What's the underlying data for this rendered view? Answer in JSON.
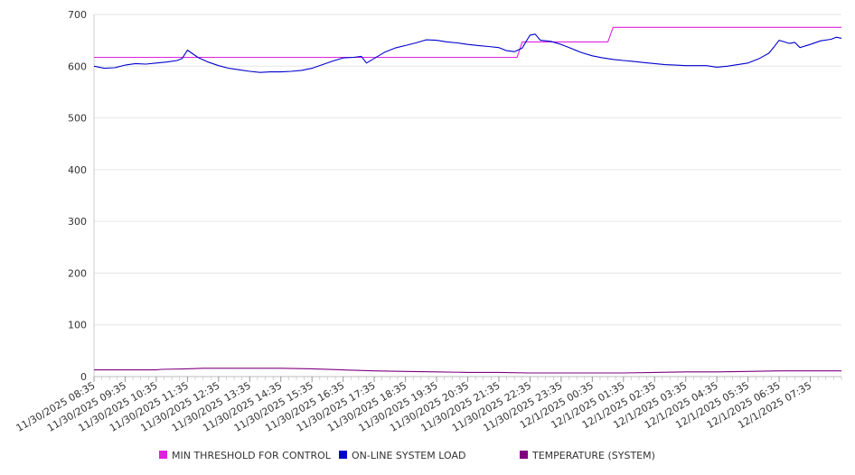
{
  "chart_data": {
    "type": "line",
    "title": "",
    "xlabel": "",
    "ylabel": "",
    "ylim": [
      0,
      700
    ],
    "y_ticks": [
      0,
      100,
      200,
      300,
      400,
      500,
      600,
      700
    ],
    "x_range": [
      "11/30/2025 08:35",
      "12/1/2025 08:35"
    ],
    "x_tick_labels": [
      "11/30/2025 08:35",
      "11/30/2025 09:35",
      "11/30/2025 10:35",
      "11/30/2025 11:35",
      "11/30/2025 12:35",
      "11/30/2025 13:35",
      "11/30/2025 14:35",
      "11/30/2025 15:35",
      "11/30/2025 16:35",
      "11/30/2025 17:35",
      "11/30/2025 18:35",
      "11/30/2025 19:35",
      "11/30/2025 20:35",
      "11/30/2025 21:35",
      "11/30/2025 22:35",
      "11/30/2025 23:35",
      "12/1/2025 00:35",
      "12/1/2025 01:35",
      "12/1/2025 02:35",
      "12/1/2025 03:35",
      "12/1/2025 04:35",
      "12/1/2025 05:35",
      "12/1/2025 06:35",
      "12/1/2025 07:35"
    ],
    "grid": "horizontal",
    "legend_position": "bottom",
    "series": [
      {
        "name": "MIN THRESHOLD FOR CONTROL",
        "color": "#e020e0",
        "points": [
          [
            "11/30/2025 08:35",
            617
          ],
          [
            "11/30/2025 22:10",
            617
          ],
          [
            "11/30/2025 22:20",
            647
          ],
          [
            "12/1/2025 01:05",
            647
          ],
          [
            "12/1/2025 01:15",
            675
          ],
          [
            "12/1/2025 08:35",
            675
          ]
        ]
      },
      {
        "name": "ON-LINE SYSTEM LOAD",
        "color": "#0000cc",
        "points": [
          [
            "11/30/2025 08:35",
            600
          ],
          [
            "11/30/2025 08:55",
            596
          ],
          [
            "11/30/2025 09:15",
            597
          ],
          [
            "11/30/2025 09:35",
            602
          ],
          [
            "11/30/2025 09:55",
            605
          ],
          [
            "11/30/2025 10:15",
            604
          ],
          [
            "11/30/2025 10:35",
            606
          ],
          [
            "11/30/2025 10:55",
            608
          ],
          [
            "11/30/2025 11:15",
            611
          ],
          [
            "11/30/2025 11:25",
            615
          ],
          [
            "11/30/2025 11:35",
            631
          ],
          [
            "11/30/2025 11:55",
            617
          ],
          [
            "11/30/2025 12:15",
            608
          ],
          [
            "11/30/2025 12:35",
            601
          ],
          [
            "11/30/2025 12:55",
            596
          ],
          [
            "11/30/2025 13:15",
            593
          ],
          [
            "11/30/2025 13:35",
            590
          ],
          [
            "11/30/2025 13:55",
            588
          ],
          [
            "11/30/2025 14:15",
            589
          ],
          [
            "11/30/2025 14:35",
            589
          ],
          [
            "11/30/2025 14:55",
            590
          ],
          [
            "11/30/2025 15:15",
            592
          ],
          [
            "11/30/2025 15:35",
            596
          ],
          [
            "11/30/2025 15:55",
            603
          ],
          [
            "11/30/2025 16:15",
            610
          ],
          [
            "11/30/2025 16:35",
            616
          ],
          [
            "11/30/2025 16:55",
            617
          ],
          [
            "11/30/2025 17:10",
            619
          ],
          [
            "11/30/2025 17:20",
            606
          ],
          [
            "11/30/2025 17:35",
            615
          ],
          [
            "11/30/2025 17:55",
            627
          ],
          [
            "11/30/2025 18:15",
            635
          ],
          [
            "11/30/2025 18:35",
            640
          ],
          [
            "11/30/2025 18:55",
            645
          ],
          [
            "11/30/2025 19:15",
            651
          ],
          [
            "11/30/2025 19:35",
            650
          ],
          [
            "11/30/2025 19:55",
            647
          ],
          [
            "11/30/2025 20:15",
            645
          ],
          [
            "11/30/2025 20:35",
            642
          ],
          [
            "11/30/2025 20:55",
            640
          ],
          [
            "11/30/2025 21:15",
            638
          ],
          [
            "11/30/2025 21:35",
            636
          ],
          [
            "11/30/2025 21:50",
            630
          ],
          [
            "11/30/2025 22:05",
            628
          ],
          [
            "11/30/2025 22:20",
            635
          ],
          [
            "11/30/2025 22:35",
            660
          ],
          [
            "11/30/2025 22:45",
            662
          ],
          [
            "11/30/2025 22:55",
            650
          ],
          [
            "11/30/2025 23:15",
            648
          ],
          [
            "11/30/2025 23:35",
            642
          ],
          [
            "11/30/2025 23:55",
            634
          ],
          [
            "12/1/2025 00:15",
            626
          ],
          [
            "12/1/2025 00:35",
            620
          ],
          [
            "12/1/2025 00:55",
            616
          ],
          [
            "12/1/2025 01:15",
            613
          ],
          [
            "12/1/2025 01:35",
            611
          ],
          [
            "12/1/2025 01:55",
            609
          ],
          [
            "12/1/2025 02:15",
            607
          ],
          [
            "12/1/2025 02:35",
            605
          ],
          [
            "12/1/2025 02:55",
            603
          ],
          [
            "12/1/2025 03:15",
            602
          ],
          [
            "12/1/2025 03:35",
            601
          ],
          [
            "12/1/2025 03:55",
            601
          ],
          [
            "12/1/2025 04:15",
            601
          ],
          [
            "12/1/2025 04:35",
            598
          ],
          [
            "12/1/2025 04:55",
            600
          ],
          [
            "12/1/2025 05:15",
            603
          ],
          [
            "12/1/2025 05:35",
            606
          ],
          [
            "12/1/2025 05:55",
            614
          ],
          [
            "12/1/2025 06:15",
            625
          ],
          [
            "12/1/2025 06:25",
            637
          ],
          [
            "12/1/2025 06:35",
            650
          ],
          [
            "12/1/2025 06:55",
            644
          ],
          [
            "12/1/2025 07:05",
            646
          ],
          [
            "12/1/2025 07:15",
            636
          ],
          [
            "12/1/2025 07:35",
            642
          ],
          [
            "12/1/2025 07:55",
            649
          ],
          [
            "12/1/2025 08:15",
            652
          ],
          [
            "12/1/2025 08:25",
            656
          ],
          [
            "12/1/2025 08:35",
            654
          ]
        ]
      },
      {
        "name": "TEMPERATURE (SYSTEM)",
        "color": "#800080",
        "points": [
          [
            "11/30/2025 08:35",
            13
          ],
          [
            "11/30/2025 10:35",
            13
          ],
          [
            "11/30/2025 10:45",
            14
          ],
          [
            "11/30/2025 11:35",
            15
          ],
          [
            "11/30/2025 12:05",
            16
          ],
          [
            "11/30/2025 12:35",
            16
          ],
          [
            "11/30/2025 13:35",
            16
          ],
          [
            "11/30/2025 14:35",
            16
          ],
          [
            "11/30/2025 15:35",
            15
          ],
          [
            "11/30/2025 16:35",
            13
          ],
          [
            "11/30/2025 17:35",
            11
          ],
          [
            "11/30/2025 18:35",
            10
          ],
          [
            "11/30/2025 19:35",
            9
          ],
          [
            "11/30/2025 20:35",
            8
          ],
          [
            "11/30/2025 21:35",
            8
          ],
          [
            "11/30/2025 22:35",
            7
          ],
          [
            "11/30/2025 23:35",
            7
          ],
          [
            "12/1/2025 00:35",
            7
          ],
          [
            "12/1/2025 01:35",
            7
          ],
          [
            "12/1/2025 02:35",
            8
          ],
          [
            "12/1/2025 03:35",
            9
          ],
          [
            "12/1/2025 04:35",
            9
          ],
          [
            "12/1/2025 05:35",
            10
          ],
          [
            "12/1/2025 06:35",
            11
          ],
          [
            "12/1/2025 07:35",
            11
          ],
          [
            "12/1/2025 08:35",
            11
          ]
        ]
      }
    ]
  }
}
